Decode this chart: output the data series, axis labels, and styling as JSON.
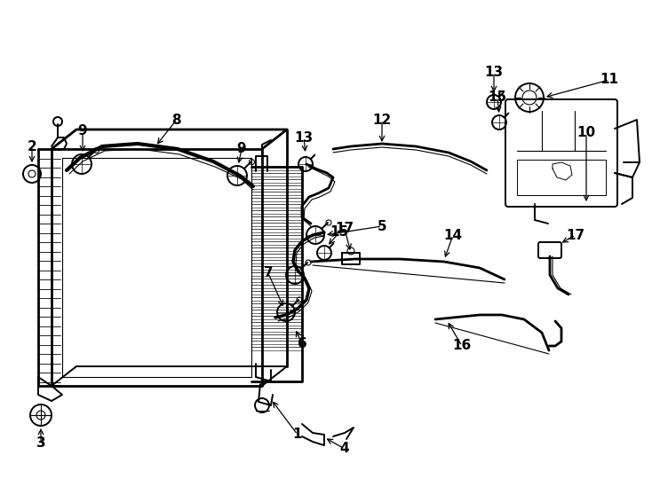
{
  "bg_color": "#ffffff",
  "fig_width": 7.34,
  "fig_height": 5.4,
  "dpi": 100
}
